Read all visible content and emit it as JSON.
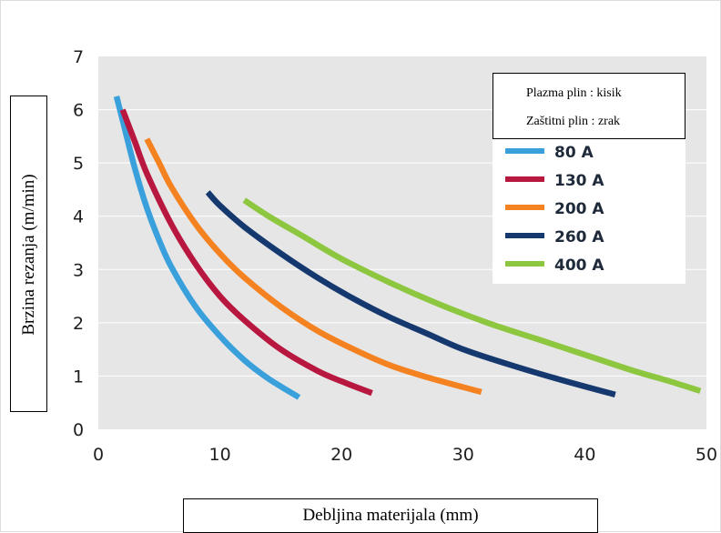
{
  "chart_data": {
    "type": "line",
    "xlabel": "Debljina materijala (mm)",
    "ylabel": "Brzina rezanja (m/min)",
    "xlim": [
      0,
      50
    ],
    "ylim": [
      0,
      7
    ],
    "xticks": [
      "0",
      "10",
      "20",
      "30",
      "40",
      "50"
    ],
    "yticks": [
      "0",
      "1",
      "2",
      "3",
      "4",
      "5",
      "6",
      "7"
    ],
    "grid": true,
    "legend_position": "top-right",
    "legend_notes": [
      "Plazma plin : kisik",
      "Zaštitni plin : zrak"
    ],
    "series": [
      {
        "name": "80 A",
        "color": "#3aa0dc",
        "x": [
          1.5,
          2,
          3,
          4,
          5,
          6,
          8,
          10,
          12,
          14,
          16.5
        ],
        "y": [
          6.25,
          5.8,
          4.9,
          4.15,
          3.55,
          3.05,
          2.3,
          1.75,
          1.3,
          0.95,
          0.6
        ]
      },
      {
        "name": "130 A",
        "color": "#b8173f",
        "x": [
          2,
          3,
          4,
          6,
          8,
          10,
          12,
          15,
          18,
          20,
          22.5
        ],
        "y": [
          6.0,
          5.4,
          4.8,
          3.85,
          3.1,
          2.5,
          2.05,
          1.5,
          1.1,
          0.9,
          0.68
        ]
      },
      {
        "name": "200 A",
        "color": "#f58220",
        "x": [
          4,
          5,
          6,
          8,
          10,
          12,
          15,
          18,
          21,
          24,
          27,
          31.5
        ],
        "y": [
          5.45,
          5.0,
          4.55,
          3.85,
          3.3,
          2.85,
          2.3,
          1.85,
          1.5,
          1.2,
          0.98,
          0.7
        ]
      },
      {
        "name": "260 A",
        "color": "#15386e",
        "x": [
          9,
          10,
          12,
          15,
          18,
          21,
          24,
          27,
          30,
          34,
          38,
          42.5
        ],
        "y": [
          4.45,
          4.2,
          3.8,
          3.3,
          2.85,
          2.45,
          2.1,
          1.8,
          1.5,
          1.2,
          0.93,
          0.65
        ]
      },
      {
        "name": "400 A",
        "color": "#8dc63f",
        "x": [
          12,
          14,
          17,
          20,
          24,
          28,
          32,
          36,
          40,
          44,
          47,
          49.5
        ],
        "y": [
          4.3,
          4.0,
          3.6,
          3.2,
          2.75,
          2.35,
          2.0,
          1.7,
          1.4,
          1.1,
          0.9,
          0.72
        ]
      }
    ]
  }
}
